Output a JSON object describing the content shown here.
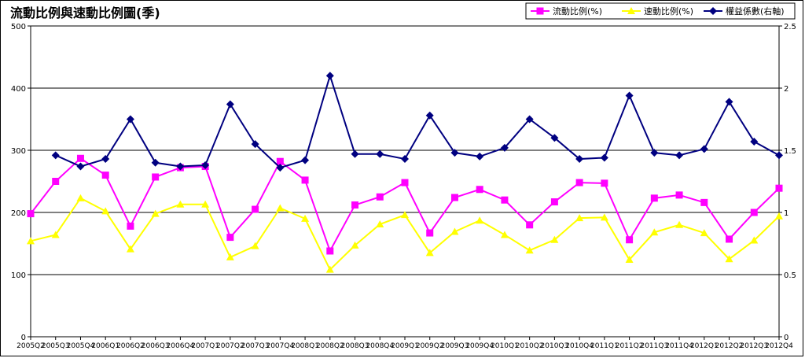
{
  "chart_data": {
    "type": "line",
    "title": "流動比例與速動比例圖(季)",
    "categories": [
      "2005Q2",
      "2005Q3",
      "2005Q4",
      "2006Q1",
      "2006Q2",
      "2006Q3",
      "2006Q4",
      "2007Q1",
      "2007Q2",
      "2007Q3",
      "2007Q4",
      "2008Q1",
      "2008Q2",
      "2008Q3",
      "2008Q4",
      "2009Q1",
      "2009Q2",
      "2009Q3",
      "2009Q4",
      "2010Q1",
      "2010Q2",
      "2010Q3",
      "2010Q4",
      "2011Q1",
      "2011Q2",
      "2011Q3",
      "2011Q4",
      "2012Q1",
      "2012Q2",
      "2012Q3",
      "2012Q4"
    ],
    "y_left": {
      "ticks": [
        0,
        100,
        200,
        300,
        400,
        500
      ],
      "ylim": [
        0,
        500
      ]
    },
    "y_right": {
      "ticks": [
        0,
        0.5,
        1,
        1.5,
        2,
        2.5
      ],
      "ylim": [
        0,
        2.5
      ]
    },
    "series": [
      {
        "name": "流動比例(%)",
        "axis": "left",
        "color": "#ff00ff",
        "marker": "square",
        "values": [
          198,
          250,
          287,
          260,
          178,
          257,
          272,
          274,
          160,
          205,
          282,
          252,
          138,
          212,
          225,
          248,
          167,
          224,
          237,
          220,
          180,
          217,
          248,
          247,
          156,
          223,
          228,
          216,
          157,
          200,
          239
        ]
      },
      {
        "name": "速動比例(%)",
        "axis": "left",
        "color": "#ffff00",
        "marker": "triangle",
        "values": [
          154,
          164,
          223,
          202,
          141,
          198,
          213,
          213,
          128,
          146,
          207,
          190,
          108,
          147,
          181,
          196,
          135,
          169,
          187,
          164,
          139,
          156,
          191,
          192,
          124,
          168,
          180,
          167,
          125,
          155,
          194
        ]
      },
      {
        "name": "權益係數(右軸)",
        "axis": "right",
        "color": "#000080",
        "marker": "diamond",
        "values": [
          null,
          1.46,
          1.37,
          1.43,
          1.75,
          1.4,
          1.37,
          1.38,
          1.87,
          1.55,
          1.36,
          1.42,
          2.1,
          1.47,
          1.47,
          1.43,
          1.78,
          1.48,
          1.45,
          1.52,
          1.75,
          1.6,
          1.43,
          1.44,
          1.94,
          1.48,
          1.46,
          1.51,
          1.89,
          1.57,
          1.46
        ]
      }
    ],
    "grid": true,
    "legend_position": "top-right"
  }
}
